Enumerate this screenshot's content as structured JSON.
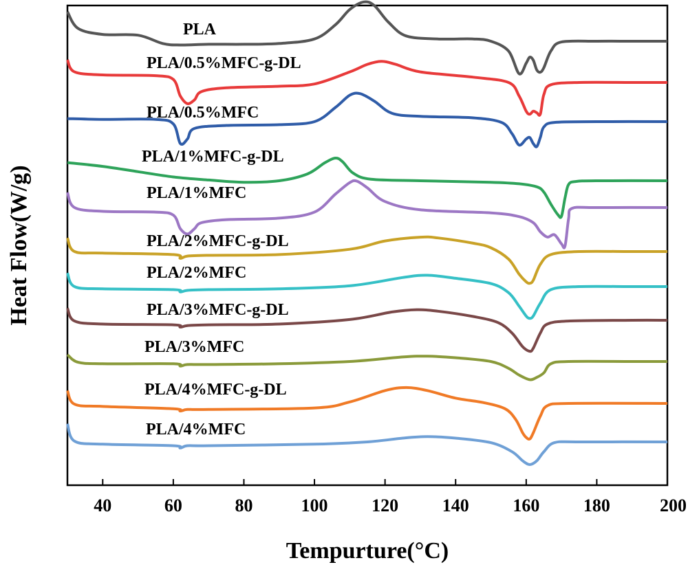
{
  "chart_data": {
    "type": "line",
    "title": "",
    "xlabel": "Tempurture(°C)",
    "ylabel": "Heat Flow(W/g)",
    "xlim": [
      30,
      200
    ],
    "xticks": [
      40,
      60,
      80,
      100,
      120,
      140,
      160,
      180,
      200
    ],
    "grid": false,
    "legend": "inline labels above each curve",
    "series": [
      {
        "name": "PLA",
        "color": "#555555",
        "points": [
          [
            30,
            1.22
          ],
          [
            33,
            1.0
          ],
          [
            40,
            0.92
          ],
          [
            50,
            0.91
          ],
          [
            57,
            0.8
          ],
          [
            62,
            0.78
          ],
          [
            70,
            0.79
          ],
          [
            80,
            0.79
          ],
          [
            90,
            0.8
          ],
          [
            100,
            0.86
          ],
          [
            106,
            1.05
          ],
          [
            110,
            1.25
          ],
          [
            114,
            1.35
          ],
          [
            117,
            1.3
          ],
          [
            121,
            1.08
          ],
          [
            126,
            0.9
          ],
          [
            135,
            0.86
          ],
          [
            145,
            0.86
          ],
          [
            150,
            0.83
          ],
          [
            155,
            0.7
          ],
          [
            158,
            0.4
          ],
          [
            160,
            0.54
          ],
          [
            161,
            0.62
          ],
          [
            162,
            0.58
          ],
          [
            163,
            0.45
          ],
          [
            164,
            0.42
          ],
          [
            165,
            0.48
          ],
          [
            167,
            0.7
          ],
          [
            170,
            0.82
          ],
          [
            180,
            0.83
          ],
          [
            190,
            0.83
          ],
          [
            200,
            0.83
          ]
        ]
      },
      {
        "name": "PLA/0.5%MFC-g-DL",
        "color": "#e83a3a",
        "points": [
          [
            30,
            1.08
          ],
          [
            32,
            0.92
          ],
          [
            40,
            0.88
          ],
          [
            55,
            0.87
          ],
          [
            60,
            0.82
          ],
          [
            62,
            0.6
          ],
          [
            64,
            0.5
          ],
          [
            66,
            0.55
          ],
          [
            68,
            0.66
          ],
          [
            75,
            0.71
          ],
          [
            90,
            0.73
          ],
          [
            100,
            0.76
          ],
          [
            110,
            0.92
          ],
          [
            115,
            1.02
          ],
          [
            119,
            1.06
          ],
          [
            123,
            1.02
          ],
          [
            130,
            0.92
          ],
          [
            145,
            0.85
          ],
          [
            155,
            0.78
          ],
          [
            158,
            0.6
          ],
          [
            160,
            0.4
          ],
          [
            161,
            0.36
          ],
          [
            162,
            0.4
          ],
          [
            163,
            0.38
          ],
          [
            164,
            0.36
          ],
          [
            165,
            0.62
          ],
          [
            167,
            0.75
          ],
          [
            175,
            0.78
          ],
          [
            190,
            0.78
          ],
          [
            200,
            0.78
          ]
        ]
      },
      {
        "name": "PLA/0.5%MFC",
        "color": "#2f5ca8",
        "points": [
          [
            30,
            0.85
          ],
          [
            40,
            0.84
          ],
          [
            55,
            0.84
          ],
          [
            60,
            0.78
          ],
          [
            62,
            0.52
          ],
          [
            64,
            0.58
          ],
          [
            66,
            0.72
          ],
          [
            75,
            0.76
          ],
          [
            90,
            0.77
          ],
          [
            100,
            0.81
          ],
          [
            106,
            1.0
          ],
          [
            110,
            1.16
          ],
          [
            113,
            1.18
          ],
          [
            117,
            1.08
          ],
          [
            122,
            0.92
          ],
          [
            130,
            0.88
          ],
          [
            145,
            0.86
          ],
          [
            153,
            0.8
          ],
          [
            156,
            0.65
          ],
          [
            158,
            0.5
          ],
          [
            160,
            0.58
          ],
          [
            161,
            0.6
          ],
          [
            162,
            0.52
          ],
          [
            163,
            0.48
          ],
          [
            164,
            0.6
          ],
          [
            165,
            0.74
          ],
          [
            168,
            0.8
          ],
          [
            180,
            0.81
          ],
          [
            200,
            0.81
          ]
        ]
      },
      {
        "name": "PLA/1%MFC-g-DL",
        "color": "#2ea35a",
        "points": [
          [
            30,
            0.77
          ],
          [
            40,
            0.72
          ],
          [
            50,
            0.65
          ],
          [
            60,
            0.58
          ],
          [
            70,
            0.54
          ],
          [
            80,
            0.51
          ],
          [
            90,
            0.53
          ],
          [
            98,
            0.62
          ],
          [
            103,
            0.77
          ],
          [
            106,
            0.83
          ],
          [
            108,
            0.78
          ],
          [
            111,
            0.63
          ],
          [
            116,
            0.55
          ],
          [
            130,
            0.53
          ],
          [
            150,
            0.51
          ],
          [
            158,
            0.49
          ],
          [
            163,
            0.45
          ],
          [
            165,
            0.38
          ],
          [
            167,
            0.22
          ],
          [
            169,
            0.08
          ],
          [
            170,
            0.06
          ],
          [
            171,
            0.3
          ],
          [
            172,
            0.48
          ],
          [
            174,
            0.52
          ],
          [
            180,
            0.53
          ],
          [
            200,
            0.53
          ]
        ]
      },
      {
        "name": "PLA/1%MFC",
        "color": "#9c77c4",
        "points": [
          [
            30,
            0.9
          ],
          [
            32,
            0.7
          ],
          [
            40,
            0.65
          ],
          [
            55,
            0.64
          ],
          [
            60,
            0.6
          ],
          [
            62,
            0.42
          ],
          [
            64,
            0.35
          ],
          [
            66,
            0.42
          ],
          [
            68,
            0.5
          ],
          [
            75,
            0.54
          ],
          [
            90,
            0.56
          ],
          [
            100,
            0.64
          ],
          [
            106,
            0.88
          ],
          [
            110,
            1.03
          ],
          [
            112,
            1.05
          ],
          [
            115,
            0.96
          ],
          [
            120,
            0.78
          ],
          [
            130,
            0.67
          ],
          [
            150,
            0.63
          ],
          [
            158,
            0.58
          ],
          [
            162,
            0.5
          ],
          [
            164,
            0.38
          ],
          [
            166,
            0.31
          ],
          [
            168,
            0.34
          ],
          [
            170,
            0.22
          ],
          [
            171,
            0.19
          ],
          [
            172,
            0.55
          ],
          [
            173,
            0.69
          ],
          [
            180,
            0.7
          ],
          [
            200,
            0.7
          ]
        ]
      },
      {
        "name": "PLA/2%MFC-g-DL",
        "color": "#c9a227",
        "points": [
          [
            30,
            0.9
          ],
          [
            32,
            0.72
          ],
          [
            40,
            0.7
          ],
          [
            60,
            0.68
          ],
          [
            62,
            0.63
          ],
          [
            64,
            0.66
          ],
          [
            70,
            0.67
          ],
          [
            90,
            0.68
          ],
          [
            110,
            0.75
          ],
          [
            120,
            0.86
          ],
          [
            130,
            0.91
          ],
          [
            135,
            0.9
          ],
          [
            145,
            0.83
          ],
          [
            150,
            0.77
          ],
          [
            155,
            0.62
          ],
          [
            158,
            0.42
          ],
          [
            160,
            0.32
          ],
          [
            161,
            0.3
          ],
          [
            162,
            0.34
          ],
          [
            164,
            0.55
          ],
          [
            167,
            0.68
          ],
          [
            175,
            0.72
          ],
          [
            190,
            0.72
          ],
          [
            200,
            0.72
          ]
        ]
      },
      {
        "name": "PLA/2%MFC",
        "color": "#35c0c6",
        "points": [
          [
            30,
            0.92
          ],
          [
            32,
            0.74
          ],
          [
            40,
            0.71
          ],
          [
            60,
            0.7
          ],
          [
            62,
            0.67
          ],
          [
            64,
            0.69
          ],
          [
            70,
            0.7
          ],
          [
            90,
            0.71
          ],
          [
            110,
            0.75
          ],
          [
            125,
            0.86
          ],
          [
            132,
            0.89
          ],
          [
            140,
            0.85
          ],
          [
            150,
            0.78
          ],
          [
            155,
            0.66
          ],
          [
            158,
            0.48
          ],
          [
            160,
            0.35
          ],
          [
            161,
            0.32
          ],
          [
            162,
            0.35
          ],
          [
            164,
            0.52
          ],
          [
            167,
            0.7
          ],
          [
            175,
            0.74
          ],
          [
            190,
            0.74
          ],
          [
            200,
            0.74
          ]
        ]
      },
      {
        "name": "PLA/3%MFC-g-DL",
        "color": "#7a4848",
        "points": [
          [
            30,
            0.93
          ],
          [
            32,
            0.76
          ],
          [
            40,
            0.72
          ],
          [
            60,
            0.71
          ],
          [
            62,
            0.68
          ],
          [
            64,
            0.7
          ],
          [
            70,
            0.71
          ],
          [
            90,
            0.72
          ],
          [
            110,
            0.78
          ],
          [
            122,
            0.88
          ],
          [
            129,
            0.91
          ],
          [
            135,
            0.89
          ],
          [
            145,
            0.82
          ],
          [
            152,
            0.74
          ],
          [
            156,
            0.6
          ],
          [
            159,
            0.42
          ],
          [
            161,
            0.36
          ],
          [
            162,
            0.4
          ],
          [
            164,
            0.6
          ],
          [
            166,
            0.72
          ],
          [
            172,
            0.76
          ],
          [
            190,
            0.77
          ],
          [
            200,
            0.77
          ]
        ]
      },
      {
        "name": "PLA/3%MFC",
        "color": "#8a9a3a",
        "points": [
          [
            30,
            0.82
          ],
          [
            33,
            0.72
          ],
          [
            40,
            0.7
          ],
          [
            60,
            0.7
          ],
          [
            62,
            0.67
          ],
          [
            64,
            0.69
          ],
          [
            70,
            0.69
          ],
          [
            90,
            0.7
          ],
          [
            110,
            0.73
          ],
          [
            125,
            0.79
          ],
          [
            132,
            0.8
          ],
          [
            140,
            0.78
          ],
          [
            150,
            0.73
          ],
          [
            155,
            0.64
          ],
          [
            158,
            0.55
          ],
          [
            161,
            0.49
          ],
          [
            163,
            0.52
          ],
          [
            165,
            0.58
          ],
          [
            167,
            0.7
          ],
          [
            172,
            0.73
          ],
          [
            190,
            0.73
          ],
          [
            200,
            0.73
          ]
        ]
      },
      {
        "name": "PLA/4%MFC-g-DL",
        "color": "#f07a26",
        "points": [
          [
            30,
            0.94
          ],
          [
            32,
            0.76
          ],
          [
            40,
            0.73
          ],
          [
            60,
            0.7
          ],
          [
            62,
            0.67
          ],
          [
            64,
            0.69
          ],
          [
            70,
            0.69
          ],
          [
            100,
            0.71
          ],
          [
            110,
            0.79
          ],
          [
            120,
            0.94
          ],
          [
            126,
            0.98
          ],
          [
            132,
            0.94
          ],
          [
            140,
            0.84
          ],
          [
            148,
            0.78
          ],
          [
            154,
            0.7
          ],
          [
            157,
            0.56
          ],
          [
            159,
            0.38
          ],
          [
            160,
            0.32
          ],
          [
            161,
            0.3
          ],
          [
            162,
            0.38
          ],
          [
            164,
            0.6
          ],
          [
            166,
            0.74
          ],
          [
            172,
            0.77
          ],
          [
            200,
            0.77
          ]
        ]
      },
      {
        "name": "PLA/4%MFC",
        "color": "#6fa0d6",
        "points": [
          [
            30,
            0.97
          ],
          [
            32,
            0.74
          ],
          [
            40,
            0.7
          ],
          [
            60,
            0.68
          ],
          [
            62,
            0.65
          ],
          [
            64,
            0.68
          ],
          [
            70,
            0.68
          ],
          [
            100,
            0.7
          ],
          [
            115,
            0.73
          ],
          [
            125,
            0.78
          ],
          [
            132,
            0.8
          ],
          [
            140,
            0.78
          ],
          [
            150,
            0.72
          ],
          [
            156,
            0.6
          ],
          [
            159,
            0.48
          ],
          [
            161,
            0.43
          ],
          [
            163,
            0.48
          ],
          [
            165,
            0.6
          ],
          [
            168,
            0.72
          ],
          [
            175,
            0.73
          ],
          [
            200,
            0.73
          ]
        ]
      }
    ]
  }
}
